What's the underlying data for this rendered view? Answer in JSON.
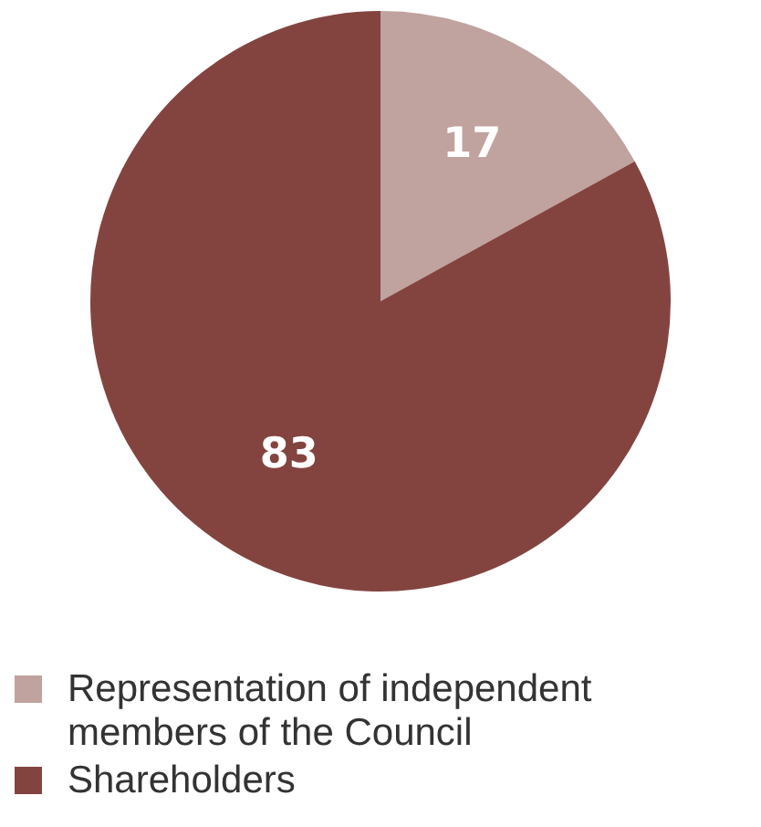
{
  "chart_data": {
    "type": "pie",
    "categories": [
      "Representation of independent members of the Council",
      "Shareholders"
    ],
    "values": [
      17,
      83
    ],
    "colors": [
      "#c0a29e",
      "#834440"
    ],
    "data_labels": true,
    "legend": "bottom"
  }
}
